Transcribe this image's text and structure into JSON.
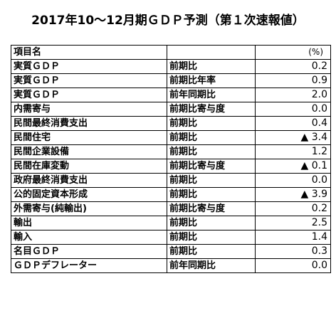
{
  "title": "2017年10～12月期ＧＤＰ予測（第１次速報値）",
  "table": {
    "header": {
      "item": "項目名",
      "measure": "",
      "unit": "(%)"
    },
    "rows": [
      {
        "item": "実質ＧＤＰ",
        "measure": "前期比",
        "value": "0.2"
      },
      {
        "item": "実質ＧＤＰ",
        "measure": "前期比年率",
        "value": "0.9"
      },
      {
        "item": "実質ＧＤＰ",
        "measure": "前年同期比",
        "value": "2.0"
      },
      {
        "item": "内需寄与",
        "measure": "前期比寄与度",
        "value": "0.0"
      },
      {
        "item": "民間最終消費支出",
        "measure": "前期比",
        "value": "0.4"
      },
      {
        "item": "民間住宅",
        "measure": "前期比",
        "value": "▲ 3.4"
      },
      {
        "item": "民間企業設備",
        "measure": "前期比",
        "value": "1.2"
      },
      {
        "item": "民間在庫変動",
        "measure": "前期比寄与度",
        "value": "▲ 0.1"
      },
      {
        "item": "政府最終消費支出",
        "measure": "前期比",
        "value": "0.0"
      },
      {
        "item": "公的固定資本形成",
        "measure": "前期比",
        "value": "▲ 3.9"
      },
      {
        "item": "外需寄与(純輸出)",
        "measure": "前期比寄与度",
        "value": "0.2"
      },
      {
        "item": "輸出",
        "measure": "前期比",
        "value": "2.5"
      },
      {
        "item": "輸入",
        "measure": "前期比",
        "value": "1.4"
      },
      {
        "item": "名目ＧＤＰ",
        "measure": "前期比",
        "value": "0.3"
      },
      {
        "item": "ＧＤＰデフレーター",
        "measure": "前年同期比",
        "value": "0.0"
      }
    ]
  }
}
